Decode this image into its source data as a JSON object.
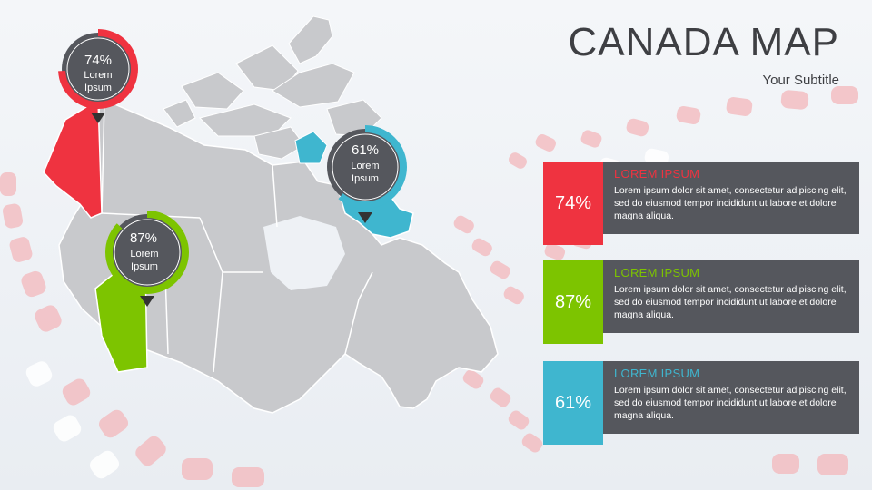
{
  "title": "CANADA MAP",
  "subtitle": "Your Subtitle",
  "colors": {
    "red": "#ef3340",
    "green": "#7dc400",
    "cyan": "#3fb6cf",
    "panel": "#55575d",
    "land": "#c8c9cc"
  },
  "callouts": [
    {
      "percent": "74%",
      "label": "Lorem Ipsum",
      "value": 74,
      "color": "#ef3340"
    },
    {
      "percent": "61%",
      "label": "Lorem Ipsum",
      "value": 61,
      "color": "#3fb6cf"
    },
    {
      "percent": "87%",
      "label": "Lorem Ipsum",
      "value": 87,
      "color": "#7dc400"
    }
  ],
  "cards": [
    {
      "percent": "74%",
      "heading": "LOREM IPSUM",
      "text": "Lorem ipsum dolor sit amet, consectetur adipiscing elit, sed do eiusmod tempor incididunt ut labore et dolore magna aliqua.",
      "color": "#ef3340"
    },
    {
      "percent": "87%",
      "heading": "LOREM IPSUM",
      "text": "Lorem ipsum dolor sit amet, consectetur adipiscing elit, sed do eiusmod tempor incididunt ut labore et dolore magna aliqua.",
      "color": "#7dc400"
    },
    {
      "percent": "61%",
      "heading": "LOREM IPSUM",
      "text": "Lorem ipsum dolor sit amet, consectetur adipiscing elit, sed do eiusmod tempor incididunt ut labore et dolore magna aliqua.",
      "color": "#3fb6cf"
    }
  ]
}
